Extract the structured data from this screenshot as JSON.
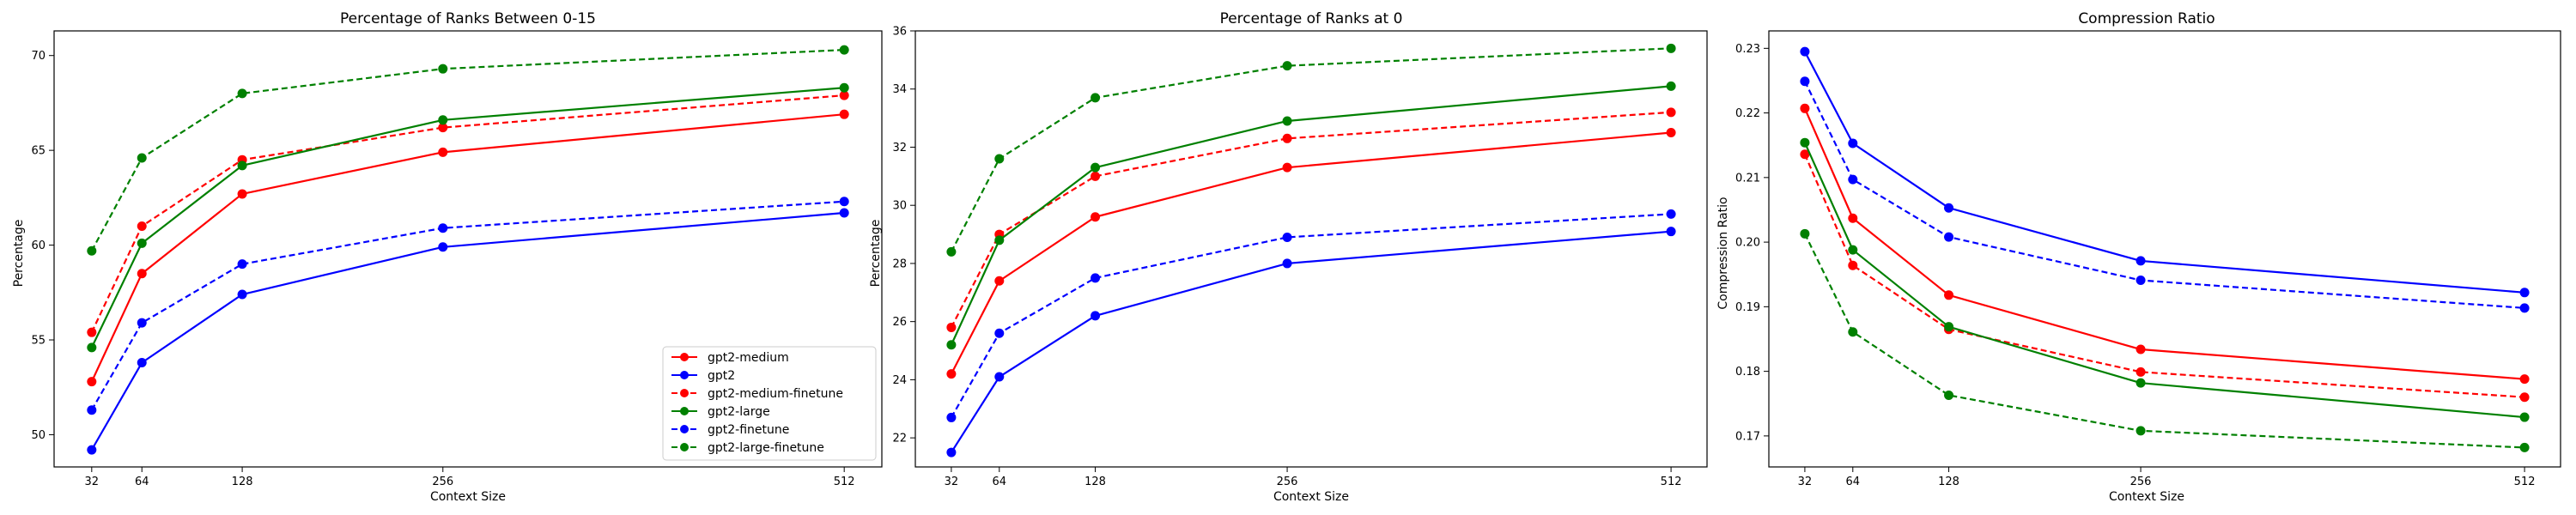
{
  "chart_data": [
    {
      "type": "line",
      "title": "Percentage of Ranks Between 0-15",
      "xlabel": "Context Size",
      "ylabel": "Percentage",
      "x": [
        32,
        64,
        128,
        256,
        512
      ],
      "xticks": [
        "32",
        "64",
        "128",
        "256",
        "512"
      ],
      "xlim": [
        8,
        536
      ],
      "ylim": [
        48.3,
        71.3
      ],
      "yticks": [
        50,
        55,
        60,
        65,
        70
      ],
      "ytick_labels": [
        "50",
        "55",
        "60",
        "65",
        "70"
      ],
      "grid": false,
      "legend": "lower-right",
      "series": [
        {
          "name": "gpt2-medium",
          "color": "#ff0000",
          "linestyle": "solid",
          "values": [
            52.8,
            58.5,
            62.7,
            64.9,
            66.9
          ]
        },
        {
          "name": "gpt2",
          "color": "#0000ff",
          "linestyle": "solid",
          "values": [
            49.2,
            53.8,
            57.4,
            59.9,
            61.7
          ]
        },
        {
          "name": "gpt2-medium-finetune",
          "color": "#ff0000",
          "linestyle": "dashed",
          "values": [
            55.4,
            61.0,
            64.5,
            66.2,
            67.9
          ]
        },
        {
          "name": "gpt2-large",
          "color": "#008000",
          "linestyle": "solid",
          "values": [
            54.6,
            60.1,
            64.2,
            66.6,
            68.3
          ]
        },
        {
          "name": "gpt2-finetune",
          "color": "#0000ff",
          "linestyle": "dashed",
          "values": [
            51.3,
            55.9,
            59.0,
            60.9,
            62.3
          ]
        },
        {
          "name": "gpt2-large-finetune",
          "color": "#008000",
          "linestyle": "dashed",
          "values": [
            59.7,
            64.6,
            68.0,
            69.3,
            70.3
          ]
        }
      ]
    },
    {
      "type": "line",
      "title": "Percentage of Ranks at 0",
      "xlabel": "Context Size",
      "ylabel": "Percentage",
      "x": [
        32,
        64,
        128,
        256,
        512
      ],
      "xticks": [
        "32",
        "64",
        "128",
        "256",
        "512"
      ],
      "xlim": [
        8,
        536
      ],
      "ylim": [
        21.0,
        36.0
      ],
      "yticks": [
        22,
        24,
        26,
        28,
        30,
        32,
        34,
        36
      ],
      "ytick_labels": [
        "22",
        "24",
        "26",
        "28",
        "30",
        "32",
        "34",
        "36"
      ],
      "grid": false,
      "series": [
        {
          "name": "gpt2-medium",
          "color": "#ff0000",
          "linestyle": "solid",
          "values": [
            24.2,
            27.4,
            29.6,
            31.3,
            32.5
          ]
        },
        {
          "name": "gpt2",
          "color": "#0000ff",
          "linestyle": "solid",
          "values": [
            21.5,
            24.1,
            26.2,
            28.0,
            29.1
          ]
        },
        {
          "name": "gpt2-medium-finetune",
          "color": "#ff0000",
          "linestyle": "dashed",
          "values": [
            25.8,
            29.0,
            31.0,
            32.3,
            33.2
          ]
        },
        {
          "name": "gpt2-large",
          "color": "#008000",
          "linestyle": "solid",
          "values": [
            25.2,
            28.8,
            31.3,
            32.9,
            34.1
          ]
        },
        {
          "name": "gpt2-finetune",
          "color": "#0000ff",
          "linestyle": "dashed",
          "values": [
            22.7,
            25.6,
            27.5,
            28.9,
            29.7
          ]
        },
        {
          "name": "gpt2-large-finetune",
          "color": "#008000",
          "linestyle": "dashed",
          "values": [
            28.4,
            31.6,
            33.7,
            34.8,
            35.4
          ]
        }
      ]
    },
    {
      "type": "line",
      "title": "Compression Ratio",
      "xlabel": "Context Size",
      "ylabel": "Compression Ratio",
      "x": [
        32,
        64,
        128,
        256,
        512
      ],
      "xticks": [
        "32",
        "64",
        "128",
        "256",
        "512"
      ],
      "xlim": [
        8,
        536
      ],
      "ylim": [
        0.1652,
        0.2327
      ],
      "yticks": [
        0.17,
        0.18,
        0.19,
        0.2,
        0.21,
        0.22,
        0.23
      ],
      "ytick_labels": [
        "0.17",
        "0.18",
        "0.19",
        "0.20",
        "0.21",
        "0.22",
        "0.23"
      ],
      "grid": false,
      "series": [
        {
          "name": "gpt2-medium",
          "color": "#ff0000",
          "linestyle": "solid",
          "values": [
            0.2207,
            0.2037,
            0.1918,
            0.1834,
            0.1788
          ]
        },
        {
          "name": "gpt2",
          "color": "#0000ff",
          "linestyle": "solid",
          "values": [
            0.2295,
            0.2153,
            0.2053,
            0.1971,
            0.1922
          ]
        },
        {
          "name": "gpt2-medium-finetune",
          "color": "#ff0000",
          "linestyle": "dashed",
          "values": [
            0.2136,
            0.1964,
            0.1865,
            0.1799,
            0.176
          ]
        },
        {
          "name": "gpt2-large",
          "color": "#008000",
          "linestyle": "solid",
          "values": [
            0.2154,
            0.1988,
            0.1869,
            0.1782,
            0.1729
          ]
        },
        {
          "name": "gpt2-finetune",
          "color": "#0000ff",
          "linestyle": "dashed",
          "values": [
            0.2249,
            0.2097,
            0.2008,
            0.1941,
            0.1898
          ]
        },
        {
          "name": "gpt2-large-finetune",
          "color": "#008000",
          "linestyle": "dashed",
          "values": [
            0.2013,
            0.1861,
            0.1763,
            0.1708,
            0.1682
          ]
        }
      ]
    }
  ]
}
